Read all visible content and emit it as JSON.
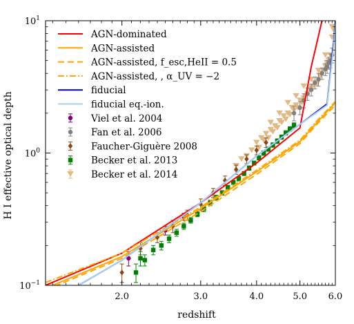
{
  "chart_data": {
    "type": "line",
    "xlabel": "redshift",
    "ylabel": "H I effective optical depth",
    "xscale": "log",
    "yscale": "log",
    "xlim": [
      1.35,
      6.0
    ],
    "ylim": [
      0.1,
      10
    ],
    "x_ticks": [
      {
        "value": 2.0,
        "label": "2.0"
      },
      {
        "value": 3.0,
        "label": "3.0"
      },
      {
        "value": 4.0,
        "label": "4.0"
      },
      {
        "value": 5.0,
        "label": "5.0"
      },
      {
        "value": 6.0,
        "label": "6.0"
      }
    ],
    "y_ticks": [
      {
        "value": 0.1,
        "base": "10",
        "exp": "−1"
      },
      {
        "value": 1,
        "base": "10",
        "exp": "0"
      },
      {
        "value": 10,
        "base": "10",
        "exp": "1"
      }
    ],
    "legend_position": "top-left",
    "series": [
      {
        "name": "AGN-dominated",
        "kind": "line",
        "color": "#ff0000",
        "dash": "",
        "x": [
          1.35,
          2.0,
          3.0,
          4.0,
          5.0,
          5.3,
          5.6
        ],
        "y": [
          0.1,
          0.175,
          0.42,
          0.84,
          1.55,
          4.5,
          10
        ]
      },
      {
        "name": "AGN-assisted",
        "kind": "line",
        "color": "#ffa500",
        "dash": "",
        "x": [
          1.35,
          2.0,
          3.0,
          4.0,
          5.0,
          5.5,
          6.0
        ],
        "y": [
          0.095,
          0.165,
          0.38,
          0.72,
          1.22,
          1.75,
          2.4
        ]
      },
      {
        "name": "AGN-assisted, f_esc,HeII = 0.5",
        "kind": "line",
        "color": "#ffa500",
        "dash": "9 5",
        "x": [
          1.35,
          2.0,
          3.0,
          4.0,
          5.0,
          5.5,
          6.0
        ],
        "y": [
          0.092,
          0.16,
          0.36,
          0.69,
          1.18,
          1.7,
          2.3
        ]
      },
      {
        "name": "AGN-assisted, , α_UV = −2",
        "kind": "line",
        "color": "#ffa500",
        "dash": "9 3 2 3",
        "x": [
          1.35,
          2.0,
          3.0,
          4.0,
          5.0,
          5.5,
          6.0
        ],
        "y": [
          0.105,
          0.175,
          0.39,
          0.74,
          1.25,
          1.8,
          2.45
        ]
      },
      {
        "name": "fiducial",
        "kind": "line",
        "color": "#0000cc",
        "dash": "",
        "x": [
          1.6,
          2.0,
          3.0,
          4.0,
          5.0,
          5.75,
          5.95,
          6.0
        ],
        "y": [
          0.1,
          0.155,
          0.42,
          0.95,
          1.65,
          2.35,
          7.0,
          10
        ]
      },
      {
        "name": "fiducial eq.-ion.",
        "kind": "line",
        "color": "#a6cff0",
        "dash": "",
        "x": [
          1.6,
          2.0,
          3.0,
          4.0,
          5.0,
          5.75,
          5.95,
          6.0
        ],
        "y": [
          0.1,
          0.155,
          0.42,
          0.95,
          1.65,
          2.3,
          6.5,
          9.5
        ]
      },
      {
        "name": "Viel et al. 2004",
        "kind": "points",
        "marker": "circle",
        "color": "#800080",
        "x": [
          2.07,
          2.5,
          2.75
        ],
        "y": [
          0.16,
          0.26,
          0.33
        ],
        "err": [
          0.02,
          0.02,
          0.02
        ]
      },
      {
        "name": "Fan et al. 2006",
        "kind": "points",
        "marker": "circle",
        "color": "#808080",
        "x": [
          4.85,
          5.0,
          5.1,
          5.2,
          5.3,
          5.4,
          5.5,
          5.6,
          5.7,
          5.75,
          5.8,
          5.85,
          5.9
        ],
        "y": [
          2.0,
          2.2,
          2.5,
          2.8,
          3.0,
          3.4,
          3.6,
          4.0,
          4.3,
          4.5,
          4.8,
          5.0,
          5.5
        ],
        "err": [
          0.25,
          0.25,
          0.3,
          0.3,
          0.3,
          0.35,
          0.4,
          0.4,
          0.45,
          0.5,
          0.5,
          0.6,
          0.7
        ]
      },
      {
        "name": "Faucher-Giguère 2008",
        "kind": "points",
        "marker": "diamond",
        "color": "#8b4513",
        "x": [
          2.0,
          2.2,
          2.4,
          2.6,
          2.8,
          3.0,
          3.2,
          3.4,
          3.6,
          3.8,
          4.0,
          4.2
        ],
        "y": [
          0.125,
          0.19,
          0.23,
          0.28,
          0.34,
          0.41,
          0.5,
          0.62,
          0.75,
          0.9,
          1.05,
          1.2
        ],
        "err": [
          0.02,
          0.02,
          0.02,
          0.03,
          0.03,
          0.04,
          0.04,
          0.05,
          0.06,
          0.07,
          0.08,
          0.1
        ]
      },
      {
        "name": "Becker et al. 2013",
        "kind": "points",
        "marker": "square",
        "color": "#008000",
        "x": [
          2.15,
          2.2,
          2.25,
          2.35,
          2.45,
          2.55,
          2.65,
          2.75,
          2.85,
          2.95,
          3.05,
          3.15,
          3.25,
          3.35,
          3.45,
          3.55,
          3.65,
          3.75,
          3.85,
          3.95,
          4.05,
          4.15,
          4.25,
          4.35,
          4.45,
          4.55,
          4.65,
          4.75,
          4.85
        ],
        "y": [
          0.125,
          0.16,
          0.155,
          0.185,
          0.2,
          0.225,
          0.25,
          0.28,
          0.31,
          0.345,
          0.38,
          0.42,
          0.46,
          0.5,
          0.55,
          0.6,
          0.64,
          0.7,
          0.77,
          0.84,
          0.92,
          1.0,
          1.07,
          1.15,
          1.23,
          1.32,
          1.42,
          1.52,
          1.62
        ],
        "err": [
          0.02,
          0.02,
          0.015,
          0.015,
          0.015,
          0.015,
          0.015,
          0.015,
          0.015,
          0.015,
          0.02,
          0.02,
          0.02,
          0.02,
          0.02,
          0.02,
          0.025,
          0.025,
          0.03,
          0.03,
          0.035,
          0.04,
          0.04,
          0.045,
          0.05,
          0.05,
          0.055,
          0.06,
          0.07
        ]
      },
      {
        "name": "Becker et al. 2014",
        "kind": "points",
        "marker": "triangle-down",
        "color": "#e2b985",
        "x": [
          3.6,
          3.7,
          3.8,
          3.9,
          4.0,
          4.05,
          4.1,
          4.15,
          4.2,
          4.25,
          4.3,
          4.35,
          4.4,
          4.45,
          4.5,
          4.55,
          4.6,
          4.65,
          4.7,
          4.75,
          4.8,
          4.85,
          4.9,
          4.95,
          5.0,
          5.05,
          5.1,
          5.15,
          5.2,
          5.25,
          5.3,
          5.35,
          5.4,
          5.45,
          5.5,
          5.55,
          5.6,
          5.65,
          5.7,
          5.75,
          5.8,
          5.85,
          5.9,
          5.95,
          4.3,
          4.5,
          4.7,
          4.9,
          5.1,
          5.3,
          5.5,
          5.7,
          5.9
        ],
        "y": [
          0.8,
          0.9,
          0.95,
          1.05,
          1.2,
          1.1,
          1.3,
          1.25,
          1.4,
          1.3,
          1.5,
          1.45,
          1.6,
          1.55,
          1.75,
          1.7,
          1.9,
          1.8,
          2.0,
          1.95,
          2.2,
          2.1,
          2.3,
          2.2,
          2.5,
          2.4,
          2.6,
          2.7,
          2.8,
          3.0,
          3.1,
          3.2,
          3.4,
          3.3,
          3.6,
          3.8,
          4.0,
          4.2,
          4.5,
          4.8,
          5.0,
          5.5,
          7.5,
          8.5,
          1.7,
          2.0,
          2.4,
          2.7,
          3.2,
          3.6,
          4.2,
          5.5,
          9.0
        ],
        "err": []
      }
    ]
  }
}
